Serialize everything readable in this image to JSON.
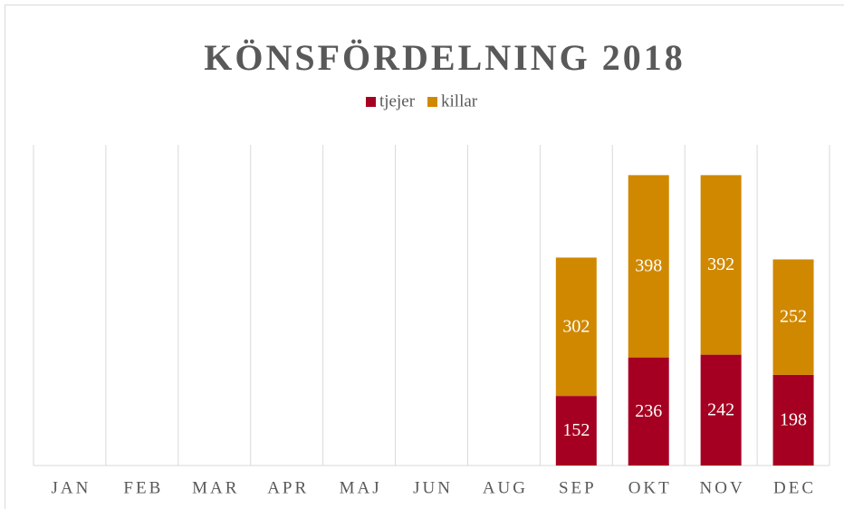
{
  "chart_data": {
    "type": "stacked_bar",
    "title": "KÖNSFÖRDELNING 2018",
    "categories": [
      "JAN",
      "FEB",
      "MAR",
      "APR",
      "MAJ",
      "JUN",
      "AUG",
      "SEP",
      "OKT",
      "NOV",
      "DEC"
    ],
    "series": [
      {
        "name": "tjejer",
        "color": "#a50021",
        "values": [
          null,
          null,
          null,
          null,
          null,
          null,
          null,
          152,
          236,
          242,
          198
        ]
      },
      {
        "name": "killar",
        "color": "#d08800",
        "values": [
          null,
          null,
          null,
          null,
          null,
          null,
          null,
          302,
          398,
          392,
          252
        ]
      }
    ],
    "ylim": [
      0,
      700
    ],
    "grid": true,
    "legend": "top"
  }
}
